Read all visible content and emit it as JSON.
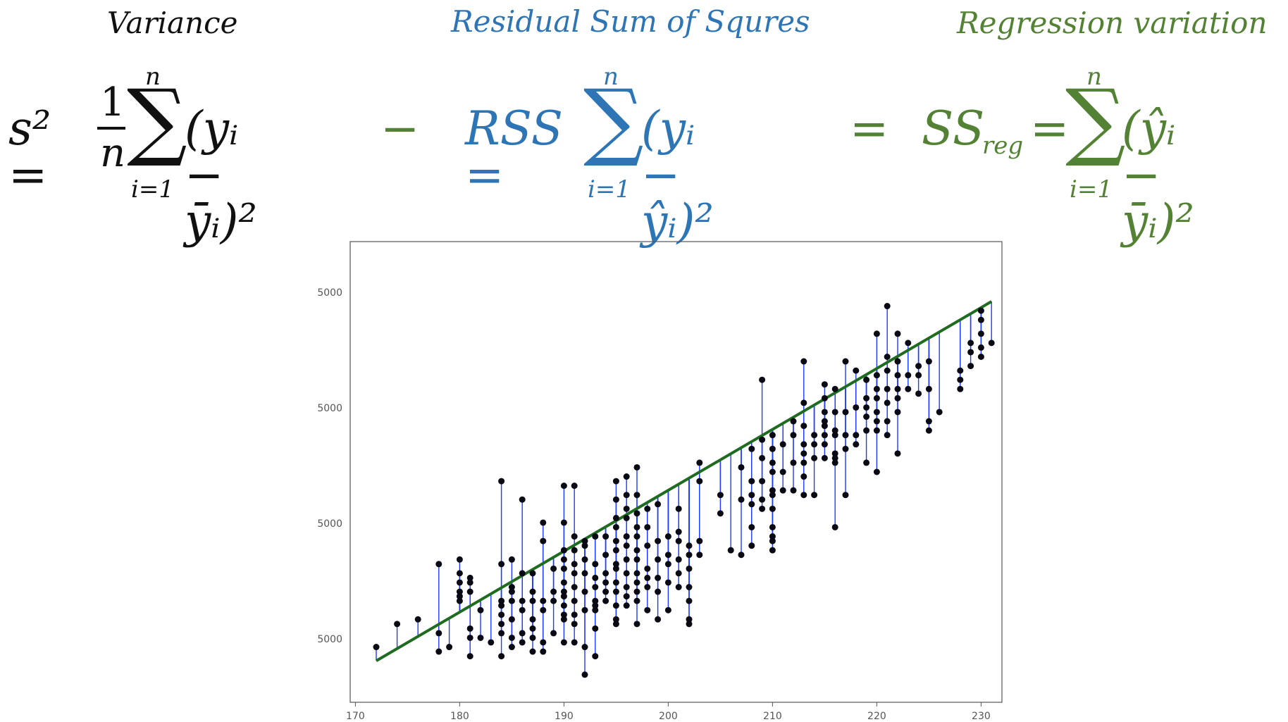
{
  "headers": {
    "variance": "Variance",
    "rss": "Residual Sum of Squres",
    "regression": "Regression variation"
  },
  "colors": {
    "black": "#111111",
    "blue": "#2e75b6",
    "green": "#548235",
    "fit_line": "#1f6b1f",
    "residual": "#1a3cff",
    "point": "#0a0a14"
  },
  "formulas": {
    "variance_lhs": "s² =",
    "frac_num": "1",
    "frac_den": "n",
    "variance_term": "(yᵢ − ȳᵢ)²",
    "minus": "−",
    "rss_lhs": "RSS =",
    "rss_term": "(yᵢ − ŷᵢ)²",
    "equals": "=",
    "ssreg_lhs_main": "SS",
    "ssreg_lhs_sub": "reg",
    "ssreg_eq": "=",
    "ssreg_term": "(ŷᵢ − ȳᵢ)²",
    "sum_upper": "n",
    "sum_lower": "i=1",
    "sigma": "∑"
  },
  "chart_data": {
    "type": "scatter",
    "x_ticks": [
      "170",
      "180",
      "190",
      "200",
      "210",
      "220",
      "230"
    ],
    "y_ticks": [
      "5000",
      "5000",
      "5000",
      "5000"
    ],
    "xlim": [
      169.5,
      232
    ],
    "ylim": [
      0,
      1
    ],
    "fit_line": {
      "x": [
        172,
        231
      ],
      "y": [
        0.09,
        0.87
      ]
    },
    "grid": false,
    "points": [
      [
        172,
        0.12
      ],
      [
        174,
        0.17
      ],
      [
        176,
        0.18
      ],
      [
        178,
        0.11
      ],
      [
        178,
        0.15
      ],
      [
        178,
        0.3
      ],
      [
        179,
        0.12
      ],
      [
        180,
        0.22
      ],
      [
        180,
        0.23
      ],
      [
        180,
        0.24
      ],
      [
        180,
        0.26
      ],
      [
        180,
        0.28
      ],
      [
        180,
        0.31
      ],
      [
        181,
        0.1
      ],
      [
        181,
        0.14
      ],
      [
        181,
        0.16
      ],
      [
        181,
        0.24
      ],
      [
        181,
        0.26
      ],
      [
        181,
        0.27
      ],
      [
        182,
        0.14
      ],
      [
        182,
        0.2
      ],
      [
        183,
        0.13
      ],
      [
        184,
        0.1
      ],
      [
        184,
        0.15
      ],
      [
        184,
        0.17
      ],
      [
        184,
        0.19
      ],
      [
        184,
        0.21
      ],
      [
        184,
        0.22
      ],
      [
        184,
        0.3
      ],
      [
        184,
        0.48
      ],
      [
        185,
        0.12
      ],
      [
        185,
        0.14
      ],
      [
        185,
        0.18
      ],
      [
        185,
        0.22
      ],
      [
        185,
        0.24
      ],
      [
        185,
        0.25
      ],
      [
        185,
        0.31
      ],
      [
        186,
        0.13
      ],
      [
        186,
        0.15
      ],
      [
        186,
        0.2
      ],
      [
        186,
        0.22
      ],
      [
        186,
        0.28
      ],
      [
        186,
        0.44
      ],
      [
        187,
        0.11
      ],
      [
        187,
        0.14
      ],
      [
        187,
        0.16
      ],
      [
        187,
        0.18
      ],
      [
        187,
        0.22
      ],
      [
        187,
        0.24
      ],
      [
        187,
        0.28
      ],
      [
        188,
        0.11
      ],
      [
        188,
        0.13
      ],
      [
        188,
        0.2
      ],
      [
        188,
        0.22
      ],
      [
        188,
        0.35
      ],
      [
        188,
        0.39
      ],
      [
        189,
        0.15
      ],
      [
        189,
        0.22
      ],
      [
        189,
        0.24
      ],
      [
        189,
        0.29
      ],
      [
        190,
        0.13
      ],
      [
        190,
        0.18
      ],
      [
        190,
        0.19
      ],
      [
        190,
        0.21
      ],
      [
        190,
        0.23
      ],
      [
        190,
        0.24
      ],
      [
        190,
        0.26
      ],
      [
        190,
        0.29
      ],
      [
        190,
        0.31
      ],
      [
        190,
        0.33
      ],
      [
        190,
        0.39
      ],
      [
        190,
        0.47
      ],
      [
        191,
        0.13
      ],
      [
        191,
        0.17
      ],
      [
        191,
        0.19
      ],
      [
        191,
        0.22
      ],
      [
        191,
        0.25
      ],
      [
        191,
        0.28
      ],
      [
        191,
        0.3
      ],
      [
        191,
        0.33
      ],
      [
        191,
        0.36
      ],
      [
        191,
        0.47
      ],
      [
        192,
        0.06
      ],
      [
        192,
        0.12
      ],
      [
        192,
        0.2
      ],
      [
        192,
        0.24
      ],
      [
        192,
        0.28
      ],
      [
        192,
        0.31
      ],
      [
        192,
        0.34
      ],
      [
        192,
        0.35
      ],
      [
        193,
        0.1
      ],
      [
        193,
        0.16
      ],
      [
        193,
        0.2
      ],
      [
        193,
        0.21
      ],
      [
        193,
        0.22
      ],
      [
        193,
        0.25
      ],
      [
        193,
        0.27
      ],
      [
        193,
        0.3
      ],
      [
        193,
        0.36
      ],
      [
        194,
        0.22
      ],
      [
        194,
        0.24
      ],
      [
        194,
        0.26
      ],
      [
        194,
        0.28
      ],
      [
        194,
        0.32
      ],
      [
        194,
        0.36
      ],
      [
        195,
        0.17
      ],
      [
        195,
        0.18
      ],
      [
        195,
        0.21
      ],
      [
        195,
        0.24
      ],
      [
        195,
        0.26
      ],
      [
        195,
        0.29
      ],
      [
        195,
        0.3
      ],
      [
        195,
        0.33
      ],
      [
        195,
        0.35
      ],
      [
        195,
        0.38
      ],
      [
        195,
        0.4
      ],
      [
        195,
        0.44
      ],
      [
        195,
        0.48
      ],
      [
        196,
        0.21
      ],
      [
        196,
        0.23
      ],
      [
        196,
        0.25
      ],
      [
        196,
        0.28
      ],
      [
        196,
        0.31
      ],
      [
        196,
        0.34
      ],
      [
        196,
        0.36
      ],
      [
        196,
        0.4
      ],
      [
        196,
        0.42
      ],
      [
        196,
        0.45
      ],
      [
        196,
        0.49
      ],
      [
        197,
        0.17
      ],
      [
        197,
        0.22
      ],
      [
        197,
        0.24
      ],
      [
        197,
        0.26
      ],
      [
        197,
        0.28
      ],
      [
        197,
        0.31
      ],
      [
        197,
        0.33
      ],
      [
        197,
        0.36
      ],
      [
        197,
        0.38
      ],
      [
        197,
        0.41
      ],
      [
        197,
        0.45
      ],
      [
        197,
        0.51
      ],
      [
        198,
        0.2
      ],
      [
        198,
        0.25
      ],
      [
        198,
        0.27
      ],
      [
        198,
        0.29
      ],
      [
        198,
        0.34
      ],
      [
        198,
        0.38
      ],
      [
        198,
        0.42
      ],
      [
        199,
        0.18
      ],
      [
        199,
        0.24
      ],
      [
        199,
        0.27
      ],
      [
        199,
        0.31
      ],
      [
        199,
        0.35
      ],
      [
        199,
        0.43
      ],
      [
        200,
        0.2
      ],
      [
        200,
        0.26
      ],
      [
        200,
        0.3
      ],
      [
        200,
        0.32
      ],
      [
        200,
        0.36
      ],
      [
        201,
        0.25
      ],
      [
        201,
        0.28
      ],
      [
        201,
        0.31
      ],
      [
        201,
        0.35
      ],
      [
        201,
        0.37
      ],
      [
        201,
        0.42
      ],
      [
        202,
        0.17
      ],
      [
        202,
        0.18
      ],
      [
        202,
        0.22
      ],
      [
        202,
        0.25
      ],
      [
        202,
        0.29
      ],
      [
        202,
        0.32
      ],
      [
        202,
        0.34
      ],
      [
        203,
        0.32
      ],
      [
        203,
        0.35
      ],
      [
        203,
        0.48
      ],
      [
        203,
        0.52
      ],
      [
        205,
        0.41
      ],
      [
        205,
        0.45
      ],
      [
        206,
        0.33
      ],
      [
        207,
        0.32
      ],
      [
        207,
        0.44
      ],
      [
        207,
        0.51
      ],
      [
        208,
        0.34
      ],
      [
        208,
        0.38
      ],
      [
        208,
        0.43
      ],
      [
        208,
        0.45
      ],
      [
        208,
        0.48
      ],
      [
        208,
        0.55
      ],
      [
        209,
        0.42
      ],
      [
        209,
        0.44
      ],
      [
        209,
        0.48
      ],
      [
        209,
        0.53
      ],
      [
        209,
        0.57
      ],
      [
        209,
        0.7
      ],
      [
        210,
        0.33
      ],
      [
        210,
        0.35
      ],
      [
        210,
        0.36
      ],
      [
        210,
        0.38
      ],
      [
        210,
        0.42
      ],
      [
        210,
        0.45
      ],
      [
        210,
        0.46
      ],
      [
        210,
        0.5
      ],
      [
        210,
        0.52
      ],
      [
        210,
        0.55
      ],
      [
        210,
        0.58
      ],
      [
        211,
        0.46
      ],
      [
        211,
        0.5
      ],
      [
        211,
        0.56
      ],
      [
        212,
        0.46
      ],
      [
        212,
        0.52
      ],
      [
        212,
        0.58
      ],
      [
        212,
        0.61
      ],
      [
        213,
        0.45
      ],
      [
        213,
        0.49
      ],
      [
        213,
        0.52
      ],
      [
        213,
        0.54
      ],
      [
        213,
        0.56
      ],
      [
        213,
        0.6
      ],
      [
        213,
        0.65
      ],
      [
        213,
        0.74
      ],
      [
        214,
        0.45
      ],
      [
        214,
        0.53
      ],
      [
        214,
        0.56
      ],
      [
        214,
        0.58
      ],
      [
        215,
        0.53
      ],
      [
        215,
        0.56
      ],
      [
        215,
        0.58
      ],
      [
        215,
        0.6
      ],
      [
        215,
        0.61
      ],
      [
        215,
        0.63
      ],
      [
        215,
        0.66
      ],
      [
        215,
        0.69
      ],
      [
        216,
        0.38
      ],
      [
        216,
        0.52
      ],
      [
        216,
        0.53
      ],
      [
        216,
        0.54
      ],
      [
        216,
        0.58
      ],
      [
        216,
        0.59
      ],
      [
        216,
        0.63
      ],
      [
        216,
        0.68
      ],
      [
        217,
        0.45
      ],
      [
        217,
        0.55
      ],
      [
        217,
        0.58
      ],
      [
        217,
        0.63
      ],
      [
        217,
        0.74
      ],
      [
        218,
        0.56
      ],
      [
        218,
        0.58
      ],
      [
        218,
        0.64
      ],
      [
        218,
        0.72
      ],
      [
        219,
        0.52
      ],
      [
        219,
        0.59
      ],
      [
        219,
        0.62
      ],
      [
        219,
        0.64
      ],
      [
        219,
        0.66
      ],
      [
        219,
        0.7
      ],
      [
        220,
        0.5
      ],
      [
        220,
        0.59
      ],
      [
        220,
        0.61
      ],
      [
        220,
        0.63
      ],
      [
        220,
        0.66
      ],
      [
        220,
        0.68
      ],
      [
        220,
        0.71
      ],
      [
        220,
        0.8
      ],
      [
        221,
        0.58
      ],
      [
        221,
        0.61
      ],
      [
        221,
        0.65
      ],
      [
        221,
        0.68
      ],
      [
        221,
        0.72
      ],
      [
        221,
        0.75
      ],
      [
        221,
        0.86
      ],
      [
        222,
        0.54
      ],
      [
        222,
        0.63
      ],
      [
        222,
        0.66
      ],
      [
        222,
        0.68
      ],
      [
        222,
        0.71
      ],
      [
        222,
        0.74
      ],
      [
        222,
        0.8
      ],
      [
        223,
        0.68
      ],
      [
        223,
        0.71
      ],
      [
        223,
        0.78
      ],
      [
        224,
        0.67
      ],
      [
        224,
        0.71
      ],
      [
        224,
        0.73
      ],
      [
        225,
        0.59
      ],
      [
        225,
        0.61
      ],
      [
        225,
        0.68
      ],
      [
        225,
        0.74
      ],
      [
        226,
        0.63
      ],
      [
        228,
        0.68
      ],
      [
        228,
        0.7
      ],
      [
        228,
        0.72
      ],
      [
        229,
        0.73
      ],
      [
        229,
        0.76
      ],
      [
        229,
        0.78
      ],
      [
        230,
        0.75
      ],
      [
        230,
        0.77
      ],
      [
        230,
        0.8
      ],
      [
        230,
        0.83
      ],
      [
        230,
        0.85
      ],
      [
        231,
        0.78
      ]
    ]
  }
}
